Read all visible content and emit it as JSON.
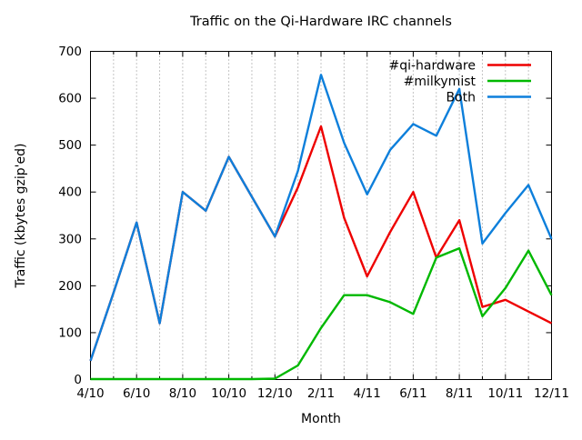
{
  "chart_data": {
    "type": "line",
    "title": "Traffic on the Qi-Hardware IRC channels",
    "xlabel": "Month",
    "ylabel": "Traffic (kbytes gzip'ed)",
    "categories": [
      "4/10",
      "5/10",
      "6/10",
      "7/10",
      "8/10",
      "9/10",
      "10/10",
      "11/10",
      "12/10",
      "1/11",
      "2/11",
      "3/11",
      "4/11",
      "5/11",
      "6/11",
      "7/11",
      "8/11",
      "9/11",
      "10/11",
      "11/11",
      "12/11"
    ],
    "x_labeled_every": 2,
    "x_tick_labels": [
      "4/10",
      "6/10",
      "8/10",
      "10/10",
      "12/10",
      "2/11",
      "4/11",
      "6/11",
      "8/11",
      "10/11",
      "12/11"
    ],
    "ylim": [
      0,
      700
    ],
    "ytick_step": 100,
    "ytick_labels": [
      "0",
      "100",
      "200",
      "300",
      "400",
      "500",
      "600",
      "700"
    ],
    "grid": "vertical-dotted-every-month",
    "legend_position": "top-right-inside",
    "series": [
      {
        "name": "#qi-hardware",
        "color": "#ee0000",
        "values": [
          40,
          185,
          335,
          120,
          400,
          360,
          475,
          390,
          305,
          410,
          540,
          345,
          220,
          315,
          400,
          260,
          340,
          155,
          170,
          145,
          120
        ]
      },
      {
        "name": "#milkymist",
        "color": "#00b800",
        "values": [
          1,
          1,
          1,
          1,
          1,
          1,
          1,
          1,
          2,
          30,
          110,
          180,
          180,
          165,
          140,
          260,
          280,
          135,
          195,
          275,
          180
        ]
      },
      {
        "name": "Both",
        "color": "#0d7fdb",
        "values": [
          40,
          185,
          335,
          120,
          400,
          360,
          475,
          390,
          305,
          445,
          650,
          505,
          395,
          490,
          545,
          520,
          620,
          290,
          355,
          415,
          300
        ]
      }
    ],
    "colors": {
      "axis": "#000000",
      "grid": "#8a8a8a",
      "background": "#ffffff"
    }
  }
}
